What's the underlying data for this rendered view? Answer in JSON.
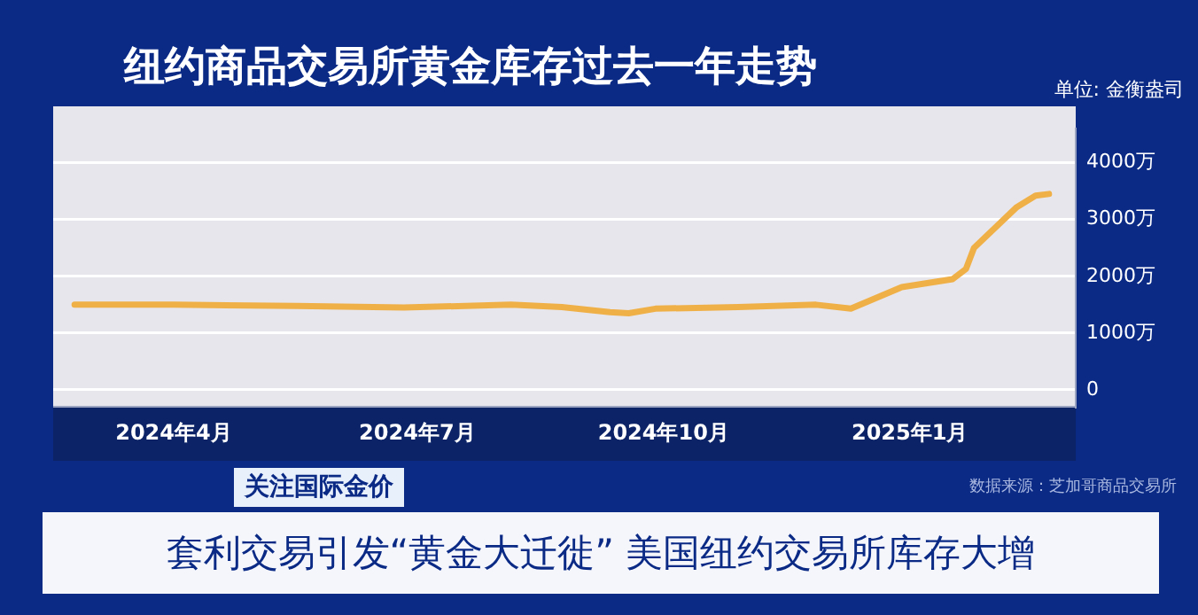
{
  "chart_data": {
    "type": "line",
    "title": "纽约商品交易所黄金库存过去一年走势",
    "ylabel": "单位: 金衡盎司",
    "x": [
      "2024-02-24",
      "2024-04-01",
      "2024-05-17",
      "2024-06-26",
      "2024-08-05",
      "2024-08-24",
      "2024-09-11",
      "2024-09-18",
      "2024-09-28",
      "2024-10-29",
      "2024-11-27",
      "2024-12-10",
      "2024-12-29",
      "2025-01-17",
      "2025-01-22",
      "2025-01-25",
      "2025-02-10",
      "2025-02-17",
      "2025-02-22"
    ],
    "series": [
      {
        "color": "#f0b048",
        "values": [
          1500,
          1500,
          1480,
          1450,
          1500,
          1460,
          1370,
          1350,
          1430,
          1460,
          1500,
          1430,
          1810,
          1950,
          2130,
          2500,
          3220,
          3420,
          3450
        ]
      }
    ],
    "xlim": [
      "2024-02-16",
      "2025-03-04"
    ],
    "xticks": [
      {
        "value": "2024-04-01",
        "label": "2024年4月"
      },
      {
        "value": "2024-07-01",
        "label": "2024年7月"
      },
      {
        "value": "2024-10-01",
        "label": "2024年10月"
      },
      {
        "value": "2025-01-01",
        "label": "2025年1月"
      }
    ],
    "ylim": [
      -300,
      4600
    ],
    "yticks": [
      {
        "value": 0,
        "label": "0"
      },
      {
        "value": 1000,
        "label": "1000万"
      },
      {
        "value": 2000,
        "label": "2000万"
      },
      {
        "value": 3000,
        "label": "3000万"
      },
      {
        "value": 4000,
        "label": "4000万"
      }
    ],
    "grid": "y",
    "legend": false,
    "marker": "none",
    "line_style": "solid",
    "annotations": [
      "关注国际金价",
      "数据来源：芝加哥商品交易所",
      "套利交易引发“黄金大迁徙” 美国纽约交易所库存大增"
    ]
  }
}
